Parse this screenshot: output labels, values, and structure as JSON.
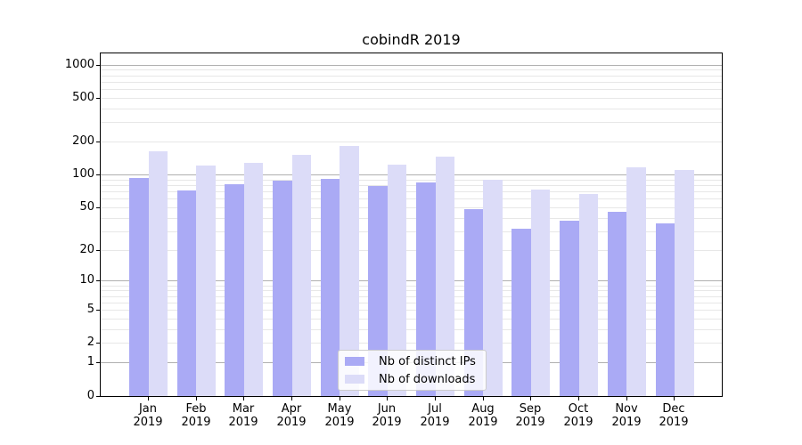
{
  "title": "cobindR 2019",
  "chart_data": {
    "type": "bar",
    "title": "cobindR 2019",
    "categories": [
      "Jan",
      "Feb",
      "Mar",
      "Apr",
      "May",
      "Jun",
      "Jul",
      "Aug",
      "Sep",
      "Oct",
      "Nov",
      "Dec"
    ],
    "x_tick_year": "2019",
    "series": [
      {
        "name": "Nb of distinct IPs",
        "color": "#aaaaf5",
        "values": [
          94,
          72,
          82,
          89,
          92,
          79,
          85,
          49,
          32,
          38,
          46,
          36
        ]
      },
      {
        "name": "Nb of downloads",
        "color": "#dcdcf8",
        "values": [
          166,
          122,
          129,
          152,
          184,
          124,
          147,
          91,
          74,
          67,
          117,
          111
        ]
      }
    ],
    "y_ticks": [
      1000,
      500,
      200,
      100,
      50,
      20,
      10,
      5,
      2,
      1,
      0
    ],
    "scale": "log1p",
    "ylim": [
      0,
      1300
    ],
    "grid": true,
    "legend_position": "lower center"
  },
  "colors": {
    "bar_ips": "#aaaaf5",
    "bar_downloads": "#dcdcf8",
    "major_grid": "#b0b0b0",
    "minor_grid": "#e7e7e7",
    "axis": "#000000",
    "background": "#ffffff",
    "legend_border": "#cccccc"
  }
}
